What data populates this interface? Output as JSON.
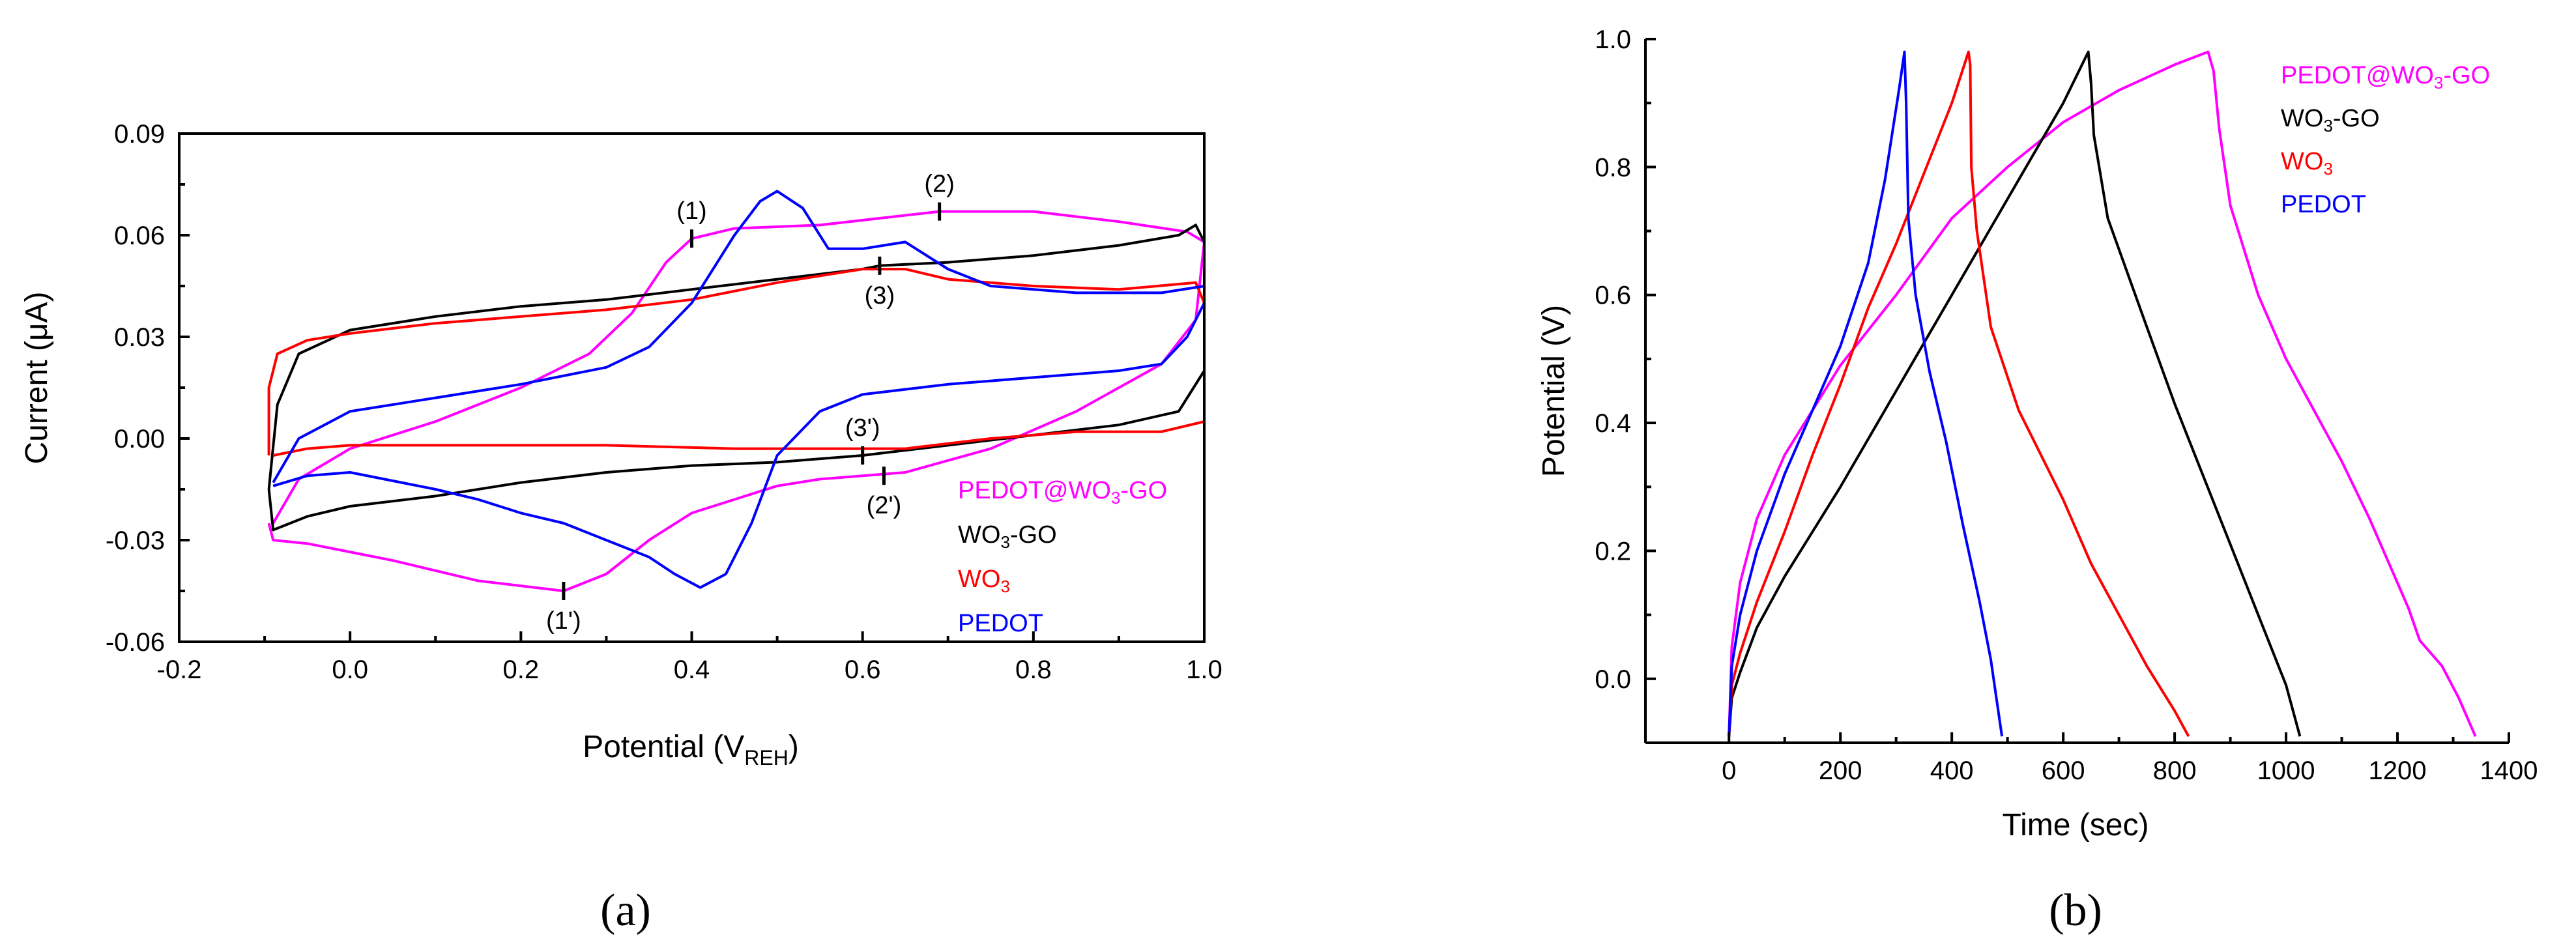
{
  "chart_data": [
    {
      "panel": "(a)",
      "type": "line",
      "xlabel": "Potential (V",
      "xlabel_sub": "REH",
      "xlabel_close": ")",
      "ylabel": "Current (μA)",
      "xlim": [
        -0.2,
        1.0
      ],
      "ylim": [
        -0.06,
        0.09
      ],
      "xticks": [
        -0.2,
        0.0,
        0.2,
        0.4,
        0.6,
        0.8,
        1.0
      ],
      "xtick_labels": [
        "-0.2",
        "0.0",
        "0.2",
        "0.4",
        "0.6",
        "0.8",
        "1.0"
      ],
      "yticks": [
        -0.06,
        -0.03,
        0.0,
        0.03,
        0.06,
        0.09
      ],
      "ytick_labels": [
        "-0.06",
        "-0.03",
        "0.00",
        "0.03",
        "0.06",
        "0.09"
      ],
      "legend": [
        {
          "label": "PEDOT@WO3-GO",
          "color": "#ff00ff"
        },
        {
          "label": "WO3-GO",
          "color": "#000000"
        },
        {
          "label": "WO3",
          "color": "#ff0000"
        },
        {
          "label": "PEDOT",
          "color": "#0000ff"
        }
      ],
      "annotations": [
        {
          "text": "(1)",
          "x": 0.4,
          "y": 0.059
        },
        {
          "text": "(2)",
          "x": 0.69,
          "y": 0.067
        },
        {
          "text": "(3)",
          "x": 0.62,
          "y": 0.051
        },
        {
          "text": "(1')",
          "x": 0.25,
          "y": -0.045
        },
        {
          "text": "(2')",
          "x": 0.625,
          "y": -0.011
        },
        {
          "text": "(3')",
          "x": 0.6,
          "y": -0.005
        }
      ],
      "series": [
        {
          "name": "PEDOT@WO3-GO",
          "color": "#ff00ff",
          "points": [
            [
              -0.09,
              -0.025
            ],
            [
              -0.06,
              -0.012
            ],
            [
              0.0,
              -0.003
            ],
            [
              0.1,
              0.005
            ],
            [
              0.2,
              0.015
            ],
            [
              0.28,
              0.025
            ],
            [
              0.33,
              0.037
            ],
            [
              0.37,
              0.052
            ],
            [
              0.4,
              0.059
            ],
            [
              0.45,
              0.062
            ],
            [
              0.55,
              0.063
            ],
            [
              0.62,
              0.065
            ],
            [
              0.69,
              0.067
            ],
            [
              0.8,
              0.067
            ],
            [
              0.9,
              0.064
            ],
            [
              0.98,
              0.061
            ],
            [
              1.0,
              0.058
            ],
            [
              0.99,
              0.035
            ],
            [
              0.95,
              0.022
            ],
            [
              0.85,
              0.008
            ],
            [
              0.75,
              -0.003
            ],
            [
              0.65,
              -0.01
            ],
            [
              0.6,
              -0.011
            ],
            [
              0.55,
              -0.012
            ],
            [
              0.5,
              -0.014
            ],
            [
              0.45,
              -0.018
            ],
            [
              0.4,
              -0.022
            ],
            [
              0.35,
              -0.03
            ],
            [
              0.3,
              -0.04
            ],
            [
              0.25,
              -0.045
            ],
            [
              0.15,
              -0.042
            ],
            [
              0.05,
              -0.036
            ],
            [
              -0.05,
              -0.031
            ],
            [
              -0.09,
              -0.03
            ],
            [
              -0.095,
              -0.025
            ]
          ]
        },
        {
          "name": "WO3-GO",
          "color": "#000000",
          "points": [
            [
              -0.095,
              -0.015
            ],
            [
              -0.085,
              0.01
            ],
            [
              -0.06,
              0.025
            ],
            [
              0.0,
              0.032
            ],
            [
              0.1,
              0.036
            ],
            [
              0.2,
              0.039
            ],
            [
              0.3,
              0.041
            ],
            [
              0.4,
              0.044
            ],
            [
              0.5,
              0.047
            ],
            [
              0.6,
              0.05
            ],
            [
              0.62,
              0.051
            ],
            [
              0.7,
              0.052
            ],
            [
              0.8,
              0.054
            ],
            [
              0.9,
              0.057
            ],
            [
              0.97,
              0.06
            ],
            [
              0.99,
              0.063
            ],
            [
              1.0,
              0.058
            ],
            [
              1.0,
              0.02
            ],
            [
              0.97,
              0.008
            ],
            [
              0.9,
              0.004
            ],
            [
              0.8,
              0.001
            ],
            [
              0.7,
              -0.002
            ],
            [
              0.6,
              -0.005
            ],
            [
              0.5,
              -0.007
            ],
            [
              0.4,
              -0.008
            ],
            [
              0.3,
              -0.01
            ],
            [
              0.2,
              -0.013
            ],
            [
              0.1,
              -0.017
            ],
            [
              0.0,
              -0.02
            ],
            [
              -0.05,
              -0.023
            ],
            [
              -0.09,
              -0.027
            ],
            [
              -0.095,
              -0.015
            ]
          ]
        },
        {
          "name": "WO3",
          "color": "#ff0000",
          "points": [
            [
              -0.095,
              -0.005
            ],
            [
              -0.095,
              0.015
            ],
            [
              -0.085,
              0.025
            ],
            [
              -0.05,
              0.029
            ],
            [
              0.0,
              0.031
            ],
            [
              0.1,
              0.034
            ],
            [
              0.2,
              0.036
            ],
            [
              0.3,
              0.038
            ],
            [
              0.4,
              0.041
            ],
            [
              0.5,
              0.046
            ],
            [
              0.6,
              0.05
            ],
            [
              0.65,
              0.05
            ],
            [
              0.7,
              0.047
            ],
            [
              0.8,
              0.045
            ],
            [
              0.9,
              0.044
            ],
            [
              0.99,
              0.046
            ],
            [
              1.0,
              0.04
            ],
            [
              1.0,
              0.03
            ],
            [
              1.0,
              0.005
            ],
            [
              0.95,
              0.002
            ],
            [
              0.85,
              0.002
            ],
            [
              0.75,
              0.0
            ],
            [
              0.65,
              -0.003
            ],
            [
              0.55,
              -0.003
            ],
            [
              0.45,
              -0.003
            ],
            [
              0.3,
              -0.002
            ],
            [
              0.2,
              -0.002
            ],
            [
              0.1,
              -0.002
            ],
            [
              0.0,
              -0.002
            ],
            [
              -0.05,
              -0.003
            ],
            [
              -0.09,
              -0.005
            ]
          ]
        },
        {
          "name": "PEDOT",
          "color": "#0000ff",
          "points": [
            [
              -0.09,
              -0.013
            ],
            [
              -0.06,
              0.0
            ],
            [
              0.0,
              0.008
            ],
            [
              0.1,
              0.012
            ],
            [
              0.2,
              0.016
            ],
            [
              0.3,
              0.021
            ],
            [
              0.35,
              0.027
            ],
            [
              0.4,
              0.04
            ],
            [
              0.45,
              0.06
            ],
            [
              0.48,
              0.07
            ],
            [
              0.5,
              0.073
            ],
            [
              0.53,
              0.068
            ],
            [
              0.56,
              0.056
            ],
            [
              0.6,
              0.056
            ],
            [
              0.65,
              0.058
            ],
            [
              0.7,
              0.05
            ],
            [
              0.75,
              0.045
            ],
            [
              0.85,
              0.043
            ],
            [
              0.95,
              0.043
            ],
            [
              1.0,
              0.045
            ],
            [
              1.0,
              0.04
            ],
            [
              0.98,
              0.03
            ],
            [
              0.95,
              0.022
            ],
            [
              0.9,
              0.02
            ],
            [
              0.8,
              0.018
            ],
            [
              0.7,
              0.016
            ],
            [
              0.6,
              0.013
            ],
            [
              0.55,
              0.008
            ],
            [
              0.5,
              -0.005
            ],
            [
              0.47,
              -0.025
            ],
            [
              0.44,
              -0.04
            ],
            [
              0.41,
              -0.044
            ],
            [
              0.38,
              -0.04
            ],
            [
              0.35,
              -0.035
            ],
            [
              0.3,
              -0.03
            ],
            [
              0.25,
              -0.025
            ],
            [
              0.2,
              -0.022
            ],
            [
              0.15,
              -0.018
            ],
            [
              0.1,
              -0.015
            ],
            [
              0.0,
              -0.01
            ],
            [
              -0.05,
              -0.011
            ],
            [
              -0.09,
              -0.014
            ]
          ]
        }
      ]
    },
    {
      "panel": "(b)",
      "type": "line",
      "xlabel": "Time (sec)",
      "ylabel": "Potential (V)",
      "xlim": [
        -150,
        1400
      ],
      "ylim": [
        -0.1,
        1.0
      ],
      "xticks": [
        0,
        200,
        400,
        600,
        800,
        1000,
        1200,
        1400
      ],
      "xtick_labels": [
        "0",
        "200",
        "400",
        "600",
        "800",
        "1000",
        "1200",
        "1400"
      ],
      "yticks": [
        0.0,
        0.2,
        0.4,
        0.6,
        0.8,
        1.0
      ],
      "ytick_labels": [
        "0.0",
        "0.2",
        "0.4",
        "0.6",
        "0.8",
        "1.0"
      ],
      "legend": [
        {
          "label": "PEDOT@WO3-GO",
          "color": "#ff00ff"
        },
        {
          "label": "WO3-GO",
          "color": "#000000"
        },
        {
          "label": "WO3",
          "color": "#ff0000"
        },
        {
          "label": "PEDOT",
          "color": "#0000ff"
        }
      ],
      "series": [
        {
          "name": "PEDOT@WO3-GO",
          "color": "#ff00ff",
          "points": [
            [
              0,
              -0.09
            ],
            [
              5,
              0.05
            ],
            [
              20,
              0.15
            ],
            [
              50,
              0.25
            ],
            [
              100,
              0.35
            ],
            [
              150,
              0.42
            ],
            [
              200,
              0.49
            ],
            [
              300,
              0.6
            ],
            [
              400,
              0.72
            ],
            [
              500,
              0.8
            ],
            [
              600,
              0.87
            ],
            [
              700,
              0.92
            ],
            [
              800,
              0.96
            ],
            [
              860,
              0.98
            ],
            [
              870,
              0.95
            ],
            [
              880,
              0.86
            ],
            [
              900,
              0.74
            ],
            [
              950,
              0.6
            ],
            [
              1000,
              0.5
            ],
            [
              1050,
              0.42
            ],
            [
              1100,
              0.34
            ],
            [
              1150,
              0.25
            ],
            [
              1200,
              0.15
            ],
            [
              1220,
              0.11
            ],
            [
              1240,
              0.06
            ],
            [
              1280,
              0.02
            ],
            [
              1310,
              -0.03
            ],
            [
              1340,
              -0.09
            ]
          ]
        },
        {
          "name": "WO3-GO",
          "color": "#000000",
          "points": [
            [
              0,
              -0.09
            ],
            [
              5,
              -0.03
            ],
            [
              20,
              0.01
            ],
            [
              50,
              0.08
            ],
            [
              100,
              0.16
            ],
            [
              200,
              0.3
            ],
            [
              300,
              0.45
            ],
            [
              400,
              0.6
            ],
            [
              500,
              0.75
            ],
            [
              600,
              0.9
            ],
            [
              645,
              0.98
            ],
            [
              650,
              0.93
            ],
            [
              655,
              0.85
            ],
            [
              680,
              0.72
            ],
            [
              750,
              0.55
            ],
            [
              800,
              0.43
            ],
            [
              850,
              0.32
            ],
            [
              900,
              0.21
            ],
            [
              950,
              0.1
            ],
            [
              1000,
              -0.01
            ],
            [
              1025,
              -0.09
            ]
          ]
        },
        {
          "name": "WO3",
          "color": "#ff0000",
          "points": [
            [
              0,
              -0.09
            ],
            [
              5,
              -0.01
            ],
            [
              20,
              0.04
            ],
            [
              50,
              0.12
            ],
            [
              100,
              0.23
            ],
            [
              150,
              0.35
            ],
            [
              200,
              0.46
            ],
            [
              250,
              0.58
            ],
            [
              300,
              0.68
            ],
            [
              350,
              0.79
            ],
            [
              400,
              0.9
            ],
            [
              430,
              0.98
            ],
            [
              433,
              0.96
            ],
            [
              435,
              0.8
            ],
            [
              445,
              0.7
            ],
            [
              470,
              0.55
            ],
            [
              520,
              0.42
            ],
            [
              600,
              0.28
            ],
            [
              650,
              0.18
            ],
            [
              700,
              0.1
            ],
            [
              750,
              0.02
            ],
            [
              800,
              -0.05
            ],
            [
              825,
              -0.09
            ]
          ]
        },
        {
          "name": "PEDOT",
          "color": "#0000ff",
          "points": [
            [
              0,
              -0.09
            ],
            [
              5,
              0.02
            ],
            [
              20,
              0.1
            ],
            [
              50,
              0.2
            ],
            [
              100,
              0.32
            ],
            [
              150,
              0.42
            ],
            [
              200,
              0.52
            ],
            [
              250,
              0.65
            ],
            [
              280,
              0.78
            ],
            [
              305,
              0.92
            ],
            [
              315,
              0.98
            ],
            [
              318,
              0.9
            ],
            [
              322,
              0.72
            ],
            [
              335,
              0.6
            ],
            [
              360,
              0.48
            ],
            [
              390,
              0.37
            ],
            [
              420,
              0.24
            ],
            [
              450,
              0.12
            ],
            [
              470,
              0.03
            ],
            [
              490,
              -0.09
            ]
          ]
        }
      ]
    }
  ]
}
